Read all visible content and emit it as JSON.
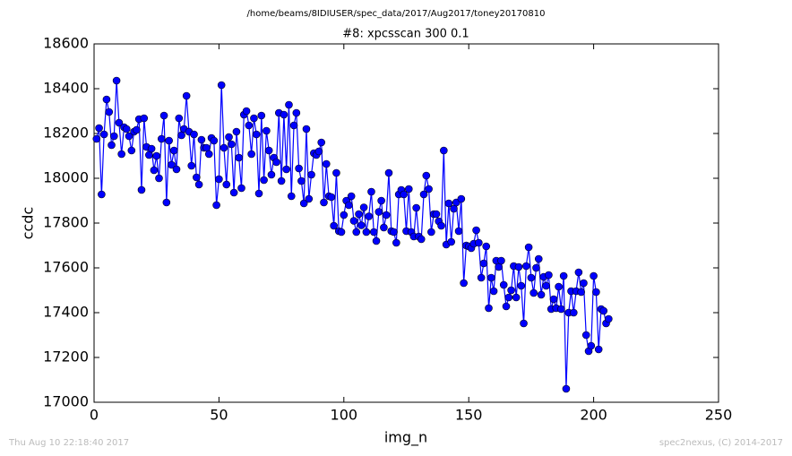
{
  "chart_data": {
    "type": "line",
    "suptitle": "/home/beams/8IDIUSER/spec_data/2017/Aug2017/toney20170810",
    "title": "#8: xpcsscan 300 0.1",
    "xlabel": "img_n",
    "ylabel": "ccdc",
    "footer_left": "Thu Aug 10 22:18:40 2017",
    "footer_right": "spec2nexus, (C) 2014-2017",
    "xlim": [
      0,
      250
    ],
    "xticks": [
      0,
      50,
      100,
      150,
      200,
      250
    ],
    "ylim": [
      17000,
      18600
    ],
    "yticks": [
      17000,
      17200,
      17400,
      17600,
      17800,
      18000,
      18200,
      18400,
      18600
    ],
    "x": [
      1,
      2,
      3,
      4,
      5,
      6,
      7,
      8,
      9,
      10,
      11,
      12,
      13,
      14,
      15,
      16,
      17,
      18,
      19,
      20,
      21,
      22,
      23,
      24,
      25,
      26,
      27,
      28,
      29,
      30,
      31,
      32,
      33,
      34,
      35,
      36,
      37,
      38,
      39,
      40,
      41,
      42,
      43,
      44,
      45,
      46,
      47,
      48,
      49,
      50,
      51,
      52,
      53,
      54,
      55,
      56,
      57,
      58,
      59,
      60,
      61,
      62,
      63,
      64,
      65,
      66,
      67,
      68,
      69,
      70,
      71,
      72,
      73,
      74,
      75,
      76,
      77,
      78,
      79,
      80,
      81,
      82,
      83,
      84,
      85,
      86,
      87,
      88,
      89,
      90,
      91,
      92,
      93,
      94,
      95,
      96,
      97,
      98,
      99,
      100,
      101,
      102,
      103,
      104,
      105,
      106,
      107,
      108,
      109,
      110,
      111,
      112,
      113,
      114,
      115,
      116,
      117,
      118,
      119,
      120,
      121,
      122,
      123,
      124,
      125,
      126,
      127,
      128,
      129,
      130,
      131,
      132,
      133,
      134,
      135,
      136,
      137,
      138,
      139,
      140,
      141,
      142,
      143,
      144,
      145,
      146,
      147,
      148,
      149,
      150,
      151,
      152,
      153,
      154,
      155,
      156,
      157,
      158,
      159,
      160,
      161,
      162,
      163,
      164,
      165,
      166,
      167,
      168,
      169,
      170,
      171,
      172,
      173,
      174,
      175,
      176,
      177,
      178,
      179,
      180,
      181,
      182,
      183,
      184,
      185,
      186,
      187,
      188,
      189,
      190,
      191,
      192,
      193,
      194,
      195,
      196,
      197,
      198,
      199,
      200,
      201,
      202,
      203,
      204,
      205,
      206
    ],
    "series": [
      {
        "name": "ccdc",
        "color": "#0000ff",
        "values": [
          18176,
          18224,
          17928,
          18196,
          18352,
          18296,
          18148,
          18188,
          18436,
          18248,
          18108,
          18228,
          18220,
          18188,
          18124,
          18208,
          18216,
          18264,
          17948,
          18268,
          18140,
          18104,
          18132,
          18036,
          18100,
          18000,
          18176,
          18280,
          17892,
          18168,
          18060,
          18124,
          18040,
          18268,
          18192,
          18220,
          18368,
          18208,
          18056,
          18196,
          18004,
          17972,
          18172,
          18136,
          18136,
          18108,
          18180,
          18168,
          17880,
          17996,
          18416,
          18136,
          17972,
          18184,
          18152,
          17936,
          18208,
          18092,
          17956,
          18284,
          18300,
          18236,
          18108,
          18268,
          18196,
          17932,
          18280,
          17992,
          18212,
          18124,
          18016,
          18092,
          18072,
          18292,
          17988,
          18284,
          18040,
          18328,
          17920,
          18236,
          18292,
          18044,
          17988,
          17888,
          18220,
          17908,
          18016,
          18112,
          18104,
          18120,
          18160,
          17892,
          18064,
          17920,
          17916,
          17788,
          18024,
          17764,
          17760,
          17836,
          17900,
          17880,
          17920,
          17810,
          17760,
          17840,
          17790,
          17870,
          17760,
          17830,
          17940,
          17760,
          17720,
          17850,
          17900,
          17780,
          17836,
          18024,
          17764,
          17760,
          17712,
          17928,
          17948,
          17928,
          17764,
          17952,
          17760,
          17740,
          17868,
          17740,
          17728,
          17928,
          18012,
          17952,
          17760,
          17840,
          17840,
          17808,
          17788,
          18124,
          17704,
          17888,
          17716,
          17864,
          17892,
          17764,
          17908,
          17532,
          17700,
          17696,
          17688,
          17708,
          17768,
          17712,
          17556,
          17620,
          17696,
          17420,
          17556,
          17496,
          17632,
          17604,
          17632,
          17524,
          17428,
          17468,
          17500,
          17608,
          17468,
          17604,
          17520,
          17352,
          17608,
          17692,
          17556,
          17488,
          17600,
          17640,
          17480,
          17560,
          17520,
          17568,
          17416,
          17460,
          17420,
          17516,
          17416,
          17564,
          17060,
          17400,
          17496,
          17400,
          17496,
          17580,
          17492,
          17532,
          17300,
          17228,
          17252,
          17564,
          17492,
          17236,
          17416,
          17408,
          17352,
          17372
        ]
      }
    ]
  }
}
